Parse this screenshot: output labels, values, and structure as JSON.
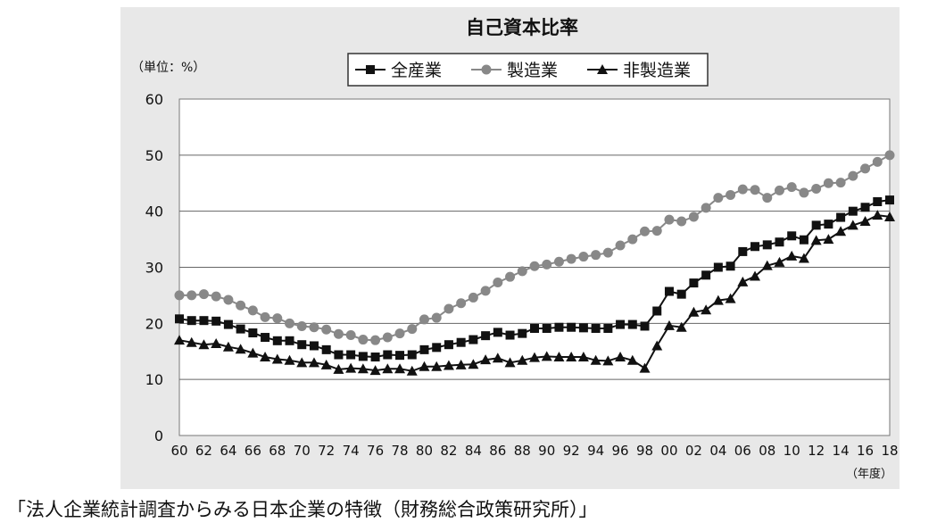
{
  "chart_data": {
    "type": "line",
    "title": "自己資本比率",
    "unit_label": "（単位：%）",
    "year_unit_label": "（年度）",
    "ylim": [
      0,
      60
    ],
    "y_ticks": [
      "0",
      "10",
      "20",
      "30",
      "40",
      "50",
      "60"
    ],
    "x_tick_labels": [
      "60",
      "62",
      "64",
      "66",
      "68",
      "70",
      "72",
      "74",
      "76",
      "78",
      "80",
      "82",
      "84",
      "86",
      "88",
      "90",
      "92",
      "94",
      "96",
      "98",
      "00",
      "02",
      "04",
      "06",
      "08",
      "10",
      "12",
      "14",
      "16",
      "18"
    ],
    "x": [
      "1960",
      "1961",
      "1962",
      "1963",
      "1964",
      "1965",
      "1966",
      "1967",
      "1968",
      "1969",
      "1970",
      "1971",
      "1972",
      "1973",
      "1974",
      "1975",
      "1976",
      "1977",
      "1978",
      "1979",
      "1980",
      "1981",
      "1982",
      "1983",
      "1984",
      "1985",
      "1986",
      "1987",
      "1988",
      "1989",
      "1990",
      "1991",
      "1992",
      "1993",
      "1994",
      "1995",
      "1996",
      "1997",
      "1998",
      "1999",
      "2000",
      "2001",
      "2002",
      "2003",
      "2004",
      "2005",
      "2006",
      "2007",
      "2008",
      "2009",
      "2010",
      "2011",
      "2012",
      "2013",
      "2014",
      "2015",
      "2016",
      "2017",
      "2018"
    ],
    "grid": true,
    "legend_position": "top-center",
    "series": [
      {
        "name": "全産業",
        "marker": "square",
        "color": "#111111",
        "values": [
          20.8,
          20.5,
          20.5,
          20.4,
          19.8,
          19.0,
          18.3,
          17.5,
          16.9,
          16.9,
          16.2,
          16.0,
          15.3,
          14.4,
          14.4,
          14.1,
          14.0,
          14.4,
          14.3,
          14.4,
          15.3,
          15.7,
          16.2,
          16.6,
          17.1,
          17.8,
          18.4,
          17.9,
          18.2,
          19.1,
          19.1,
          19.3,
          19.3,
          19.2,
          19.1,
          19.1,
          19.8,
          19.8,
          19.5,
          22.2,
          25.7,
          25.2,
          27.2,
          28.6,
          30.0,
          30.2,
          32.8,
          33.7,
          34.0,
          34.5,
          35.6,
          34.9,
          37.5,
          37.7,
          38.9,
          40.0,
          40.7,
          41.7,
          42.0
        ]
      },
      {
        "name": "製造業",
        "marker": "circle",
        "color": "#888888",
        "values": [
          25.0,
          25.0,
          25.2,
          24.8,
          24.2,
          23.2,
          22.3,
          21.1,
          20.9,
          20.0,
          19.5,
          19.3,
          18.9,
          18.1,
          17.9,
          17.1,
          17.0,
          17.5,
          18.2,
          19.0,
          20.7,
          21.0,
          22.6,
          23.6,
          24.6,
          25.8,
          27.3,
          28.3,
          29.3,
          30.2,
          30.5,
          31.0,
          31.5,
          31.9,
          32.2,
          32.6,
          33.9,
          35.0,
          36.4,
          36.5,
          38.5,
          38.2,
          39.0,
          40.6,
          42.4,
          42.9,
          43.9,
          43.8,
          42.4,
          43.7,
          44.3,
          43.3,
          44.0,
          45.0,
          45.1,
          46.3,
          47.6,
          48.8,
          50.0
        ]
      },
      {
        "name": "非製造業",
        "marker": "triangle",
        "color": "#111111",
        "values": [
          17.0,
          16.6,
          16.2,
          16.4,
          15.8,
          15.4,
          14.7,
          14.0,
          13.6,
          13.4,
          13.0,
          13.0,
          12.6,
          11.8,
          12.0,
          11.9,
          11.6,
          11.9,
          11.9,
          11.5,
          12.3,
          12.3,
          12.5,
          12.6,
          12.7,
          13.5,
          13.8,
          13.0,
          13.4,
          13.9,
          14.1,
          14.0,
          14.0,
          14.0,
          13.4,
          13.3,
          14.0,
          13.4,
          12.0,
          16.0,
          19.6,
          19.3,
          22.0,
          22.4,
          24.1,
          24.4,
          27.4,
          28.4,
          30.3,
          30.9,
          32.0,
          31.6,
          34.8,
          35.0,
          36.4,
          37.5,
          38.2,
          39.3,
          39.0
        ]
      }
    ]
  },
  "caption": "「法人企業統計調査からみる日本企業の特徴（財務総合政策研究所）」"
}
